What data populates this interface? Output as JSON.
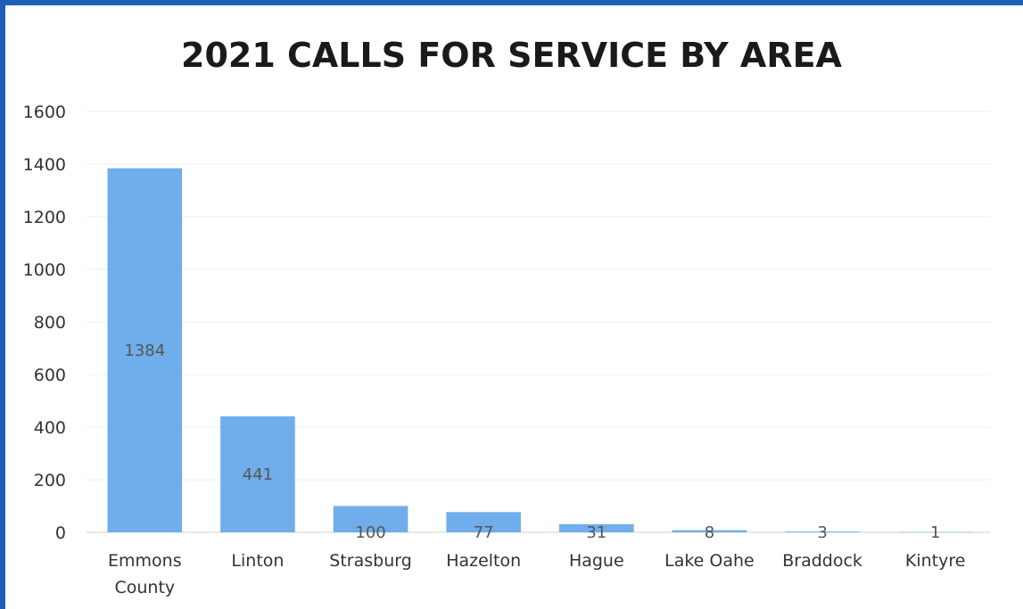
{
  "chart_data": {
    "type": "bar",
    "title": "2021 CALLS FOR SERVICE BY AREA",
    "xlabel": "",
    "ylabel": "",
    "categories": [
      [
        "Emmons",
        "County"
      ],
      [
        "Linton"
      ],
      [
        "Strasburg"
      ],
      [
        "Hazelton"
      ],
      [
        "Hague"
      ],
      [
        "Lake Oahe"
      ],
      [
        "Braddock"
      ],
      [
        "Kintyre"
      ]
    ],
    "values": [
      1384,
      441,
      100,
      77,
      31,
      8,
      3,
      1
    ],
    "data_labels": [
      "1384",
      "441",
      "100",
      "77",
      "31",
      "8",
      "3",
      "1"
    ],
    "ylim": [
      0,
      1600
    ],
    "yticks": [
      "0",
      "200",
      "400",
      "600",
      "800",
      "1000",
      "1200",
      "1400",
      "1600"
    ],
    "grid": true,
    "legend": "none",
    "bar_color": "#6faeea"
  }
}
